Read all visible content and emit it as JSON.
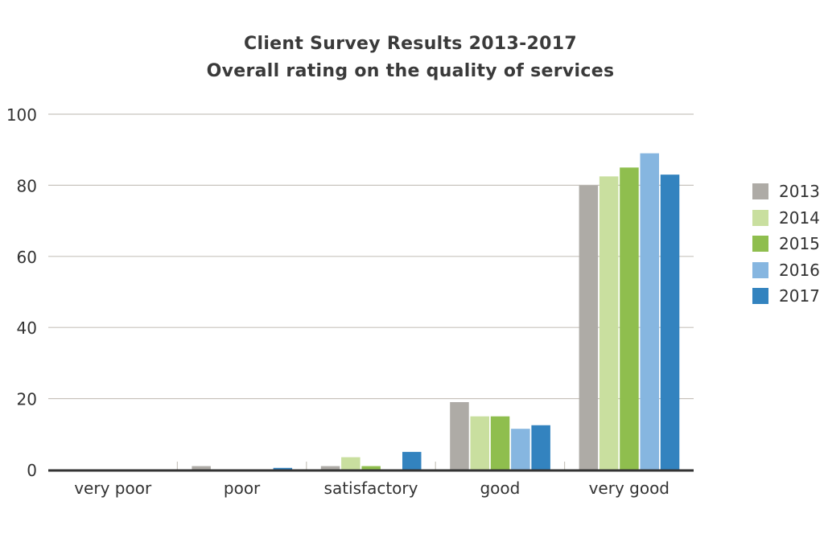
{
  "chart_data": {
    "type": "bar",
    "title": "Client Survey Results 2013-2017",
    "subtitle": "Overall rating on the quality of services",
    "categories": [
      "very poor",
      "poor",
      "satisfactory",
      "good",
      "very good"
    ],
    "series": [
      {
        "name": "2013",
        "color": "#aeaba6",
        "values": [
          0,
          1,
          1,
          19,
          80
        ]
      },
      {
        "name": "2014",
        "color": "#c9df9f",
        "values": [
          0,
          0,
          3.5,
          15,
          82.5
        ]
      },
      {
        "name": "2015",
        "color": "#8fbe4e",
        "values": [
          0,
          0,
          1,
          15,
          85
        ]
      },
      {
        "name": "2016",
        "color": "#86b6e0",
        "values": [
          0,
          0,
          0,
          11.5,
          89
        ]
      },
      {
        "name": "2017",
        "color": "#3383bf",
        "values": [
          0,
          0.5,
          5,
          12.5,
          83
        ]
      }
    ],
    "yticks": [
      0,
      20,
      40,
      60,
      80,
      100
    ],
    "ylim": [
      0,
      100
    ],
    "grid": true,
    "legend_position": "right"
  }
}
